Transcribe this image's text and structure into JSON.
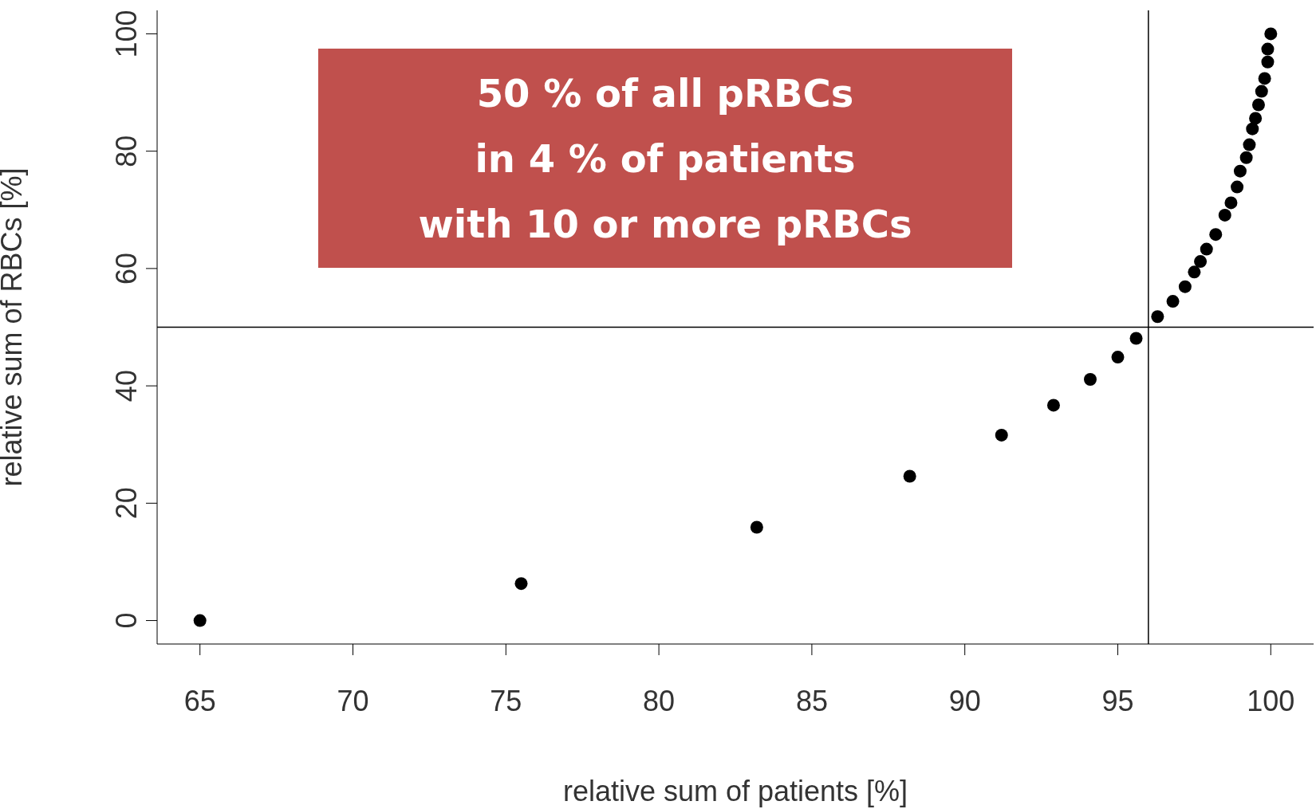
{
  "chart_data": {
    "type": "scatter",
    "xlabel": "relative sum of patients [%]",
    "ylabel": "relative sum of RBCs [%]",
    "x": [
      65,
      75.5,
      83.2,
      88.2,
      91.2,
      92.9,
      94.1,
      95.0,
      95.6,
      96.3,
      96.8,
      97.2,
      97.5,
      97.7,
      97.9,
      98.2,
      98.5,
      98.7,
      98.9,
      99.0,
      99.2,
      99.3,
      99.4,
      99.5,
      99.6,
      99.7,
      99.8,
      99.9,
      99.9,
      100
    ],
    "series": [
      {
        "color": "#000000",
        "values": [
          0,
          6.3,
          15.9,
          24.6,
          31.6,
          36.7,
          41.1,
          44.9,
          48.1,
          51.8,
          54.4,
          56.9,
          59.4,
          61.2,
          63.3,
          65.8,
          69.1,
          71.2,
          73.9,
          76.6,
          78.9,
          81.1,
          83.8,
          85.6,
          87.9,
          90.2,
          92.4,
          95.2,
          97.4,
          100
        ]
      }
    ],
    "xlim": [
      63.6,
      101.4
    ],
    "ylim": [
      -4,
      104
    ],
    "xticks": [
      65,
      70,
      75,
      80,
      85,
      90,
      95,
      100
    ],
    "yticks": [
      0,
      20,
      40,
      60,
      80,
      100
    ],
    "ref_lines": [
      {
        "axis": "x",
        "value": 96,
        "color": "#000000"
      },
      {
        "axis": "y",
        "value": 50,
        "color": "#000000"
      }
    ],
    "annotations": [
      "50 % of all pRBCs\nin 4 % of patients\nwith 10 or more pRBCs"
    ],
    "marker": "circle"
  }
}
